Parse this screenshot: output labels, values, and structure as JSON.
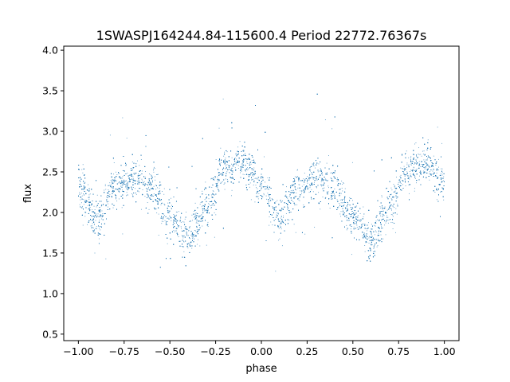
{
  "chart_data": {
    "type": "scatter",
    "title": "1SWASPJ164244.84-115600.4 Period 22772.76367s",
    "xlabel": "phase",
    "ylabel": "flux",
    "xlim": [
      -1.08,
      1.08
    ],
    "ylim": [
      0.42,
      4.05
    ],
    "xticks": [
      -1.0,
      -0.75,
      -0.5,
      -0.25,
      0.0,
      0.25,
      0.5,
      0.75,
      1.0
    ],
    "xtick_labels": [
      "−1.00",
      "−0.75",
      "−0.50",
      "−0.25",
      "0.00",
      "0.25",
      "0.50",
      "0.75",
      "1.00"
    ],
    "yticks": [
      0.5,
      1.0,
      1.5,
      2.0,
      2.5,
      3.0,
      3.5,
      4.0
    ],
    "ytick_labels": [
      "0.5",
      "1.0",
      "1.5",
      "2.0",
      "2.5",
      "3.0",
      "3.5",
      "4.0"
    ],
    "grid": false,
    "marker_color": "#1f77b4",
    "series": [
      {
        "phase": [
          -1.0,
          -0.9,
          -0.8,
          -0.7,
          -0.6,
          -0.5,
          -0.4,
          -0.3,
          -0.2,
          -0.1,
          0.0,
          0.1,
          0.2,
          0.3,
          0.4,
          0.5,
          0.6,
          0.7,
          0.8,
          0.9,
          1.0
        ],
        "flux": [
          2.35,
          1.92,
          2.3,
          2.42,
          2.32,
          1.95,
          1.68,
          2.05,
          2.55,
          2.62,
          2.35,
          1.92,
          2.3,
          2.42,
          2.32,
          1.95,
          1.68,
          2.05,
          2.55,
          2.62,
          2.35
        ],
        "scatter": 0.13
      }
    ]
  }
}
